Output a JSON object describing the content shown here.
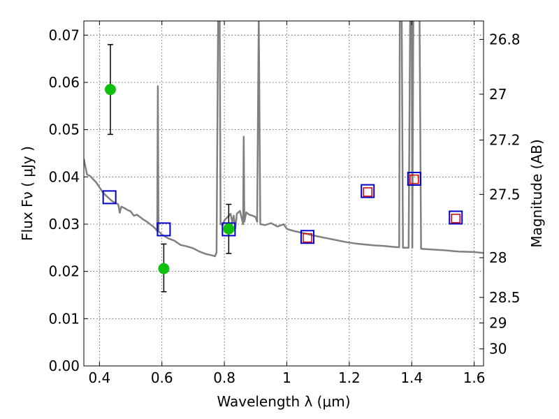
{
  "chart_data": {
    "type": "scatter",
    "xlabel": "Wavelength  λ (μm)",
    "ylabel": "Flux  Fν  ( μJy )",
    "ylabel_right": "Magnitude (AB)",
    "xlim": [
      0.35,
      1.63
    ],
    "ylim": [
      0.0,
      0.073
    ],
    "x_ticks": [
      0.4,
      0.6,
      0.8,
      1.0,
      1.2,
      1.4,
      1.6
    ],
    "x_tick_labels": [
      "0.4",
      "0.6",
      "0.8",
      "1",
      "1.2",
      "1.4",
      "1.6"
    ],
    "y_ticks": [
      0.0,
      0.01,
      0.02,
      0.03,
      0.04,
      0.05,
      0.06,
      0.07
    ],
    "y_tick_labels": [
      "0.00",
      "0.01",
      "0.02",
      "0.03",
      "0.04",
      "0.05",
      "0.06",
      "0.07"
    ],
    "right_ticks": [
      {
        "flux": 0.0691,
        "label": "26.8"
      },
      {
        "flux": 0.0575,
        "label": "27"
      },
      {
        "flux": 0.0478,
        "label": "27.2"
      },
      {
        "flux": 0.0363,
        "label": "27.5"
      },
      {
        "flux": 0.0229,
        "label": "28"
      },
      {
        "flux": 0.0145,
        "label": "28.5"
      },
      {
        "flux": 0.0091,
        "label": "29"
      },
      {
        "flux": 0.0036,
        "label": "30"
      }
    ],
    "grid": true,
    "colors": {
      "template": "#808080",
      "observed": "#10c010",
      "model_outer": "#0000cc",
      "model_inner": "#cc0000",
      "errorbar": "#000000"
    },
    "template_spectrum": [
      [
        0.35,
        0.0438
      ],
      [
        0.36,
        0.0405
      ],
      [
        0.37,
        0.0402
      ],
      [
        0.38,
        0.0395
      ],
      [
        0.39,
        0.0388
      ],
      [
        0.4,
        0.0378
      ],
      [
        0.41,
        0.0368
      ],
      [
        0.42,
        0.0361
      ],
      [
        0.43,
        0.0355
      ],
      [
        0.44,
        0.0349
      ],
      [
        0.45,
        0.0345
      ],
      [
        0.46,
        0.0342
      ],
      [
        0.465,
        0.0324
      ],
      [
        0.47,
        0.0337
      ],
      [
        0.48,
        0.0334
      ],
      [
        0.49,
        0.033
      ],
      [
        0.5,
        0.0327
      ],
      [
        0.51,
        0.0318
      ],
      [
        0.52,
        0.032
      ],
      [
        0.53,
        0.0315
      ],
      [
        0.54,
        0.031
      ],
      [
        0.55,
        0.0306
      ],
      [
        0.56,
        0.0301
      ],
      [
        0.57,
        0.0296
      ],
      [
        0.58,
        0.029
      ],
      [
        0.585,
        0.0285
      ],
      [
        0.587,
        0.0592
      ],
      [
        0.589,
        0.0285
      ],
      [
        0.6,
        0.0278
      ],
      [
        0.62,
        0.027
      ],
      [
        0.64,
        0.0265
      ],
      [
        0.66,
        0.0256
      ],
      [
        0.68,
        0.0253
      ],
      [
        0.7,
        0.0249
      ],
      [
        0.72,
        0.0242
      ],
      [
        0.74,
        0.0237
      ],
      [
        0.76,
        0.0234
      ],
      [
        0.77,
        0.0232
      ],
      [
        0.775,
        0.024
      ],
      [
        0.78,
        0.074
      ],
      [
        0.785,
        0.074
      ],
      [
        0.788,
        0.03
      ],
      [
        0.795,
        0.0298
      ],
      [
        0.8,
        0.0308
      ],
      [
        0.81,
        0.0315
      ],
      [
        0.82,
        0.0322
      ],
      [
        0.825,
        0.0304
      ],
      [
        0.83,
        0.0318
      ],
      [
        0.835,
        0.029
      ],
      [
        0.84,
        0.0322
      ],
      [
        0.85,
        0.0328
      ],
      [
        0.86,
        0.03
      ],
      [
        0.862,
        0.0485
      ],
      [
        0.864,
        0.0305
      ],
      [
        0.87,
        0.0325
      ],
      [
        0.88,
        0.032
      ],
      [
        0.89,
        0.0318
      ],
      [
        0.9,
        0.0315
      ],
      [
        0.905,
        0.0305
      ],
      [
        0.91,
        0.074
      ],
      [
        0.915,
        0.03
      ],
      [
        0.93,
        0.0298
      ],
      [
        0.95,
        0.0302
      ],
      [
        0.97,
        0.0295
      ],
      [
        0.99,
        0.03
      ],
      [
        1.0,
        0.029
      ],
      [
        1.02,
        0.0286
      ],
      [
        1.04,
        0.0283
      ],
      [
        1.06,
        0.028
      ],
      [
        1.08,
        0.0277
      ],
      [
        1.1,
        0.0274
      ],
      [
        1.13,
        0.027
      ],
      [
        1.16,
        0.0266
      ],
      [
        1.19,
        0.0262
      ],
      [
        1.22,
        0.0259
      ],
      [
        1.25,
        0.0257
      ],
      [
        1.28,
        0.0255
      ],
      [
        1.31,
        0.0254
      ],
      [
        1.34,
        0.0252
      ],
      [
        1.36,
        0.0251
      ],
      [
        1.362,
        0.074
      ],
      [
        1.368,
        0.074
      ],
      [
        1.372,
        0.025
      ],
      [
        1.39,
        0.025
      ],
      [
        1.395,
        0.074
      ],
      [
        1.4,
        0.074
      ],
      [
        1.402,
        0.025
      ],
      [
        1.405,
        0.074
      ],
      [
        1.425,
        0.074
      ],
      [
        1.43,
        0.0248
      ],
      [
        1.45,
        0.0247
      ],
      [
        1.5,
        0.0245
      ],
      [
        1.55,
        0.0242
      ],
      [
        1.6,
        0.0241
      ],
      [
        1.63,
        0.0239
      ]
    ],
    "observed_points": [
      {
        "x": 0.435,
        "y": 0.0585,
        "yerr_low": 0.049,
        "yerr_high": 0.068
      },
      {
        "x": 0.606,
        "y": 0.0206,
        "yerr_low": 0.0157,
        "yerr_high": 0.0258
      },
      {
        "x": 0.814,
        "y": 0.029,
        "yerr_low": 0.0238,
        "yerr_high": 0.0342
      }
    ],
    "model_points_outer": [
      {
        "x": 0.432,
        "y": 0.0357
      },
      {
        "x": 0.606,
        "y": 0.0289
      },
      {
        "x": 0.814,
        "y": 0.0289
      },
      {
        "x": 1.066,
        "y": 0.0273
      },
      {
        "x": 1.259,
        "y": 0.037
      },
      {
        "x": 1.408,
        "y": 0.0396
      },
      {
        "x": 1.541,
        "y": 0.0314
      }
    ],
    "model_points_inner": [
      {
        "x": 1.066,
        "y": 0.0271
      },
      {
        "x": 1.259,
        "y": 0.0368
      },
      {
        "x": 1.408,
        "y": 0.0395
      },
      {
        "x": 1.541,
        "y": 0.0312
      }
    ]
  }
}
